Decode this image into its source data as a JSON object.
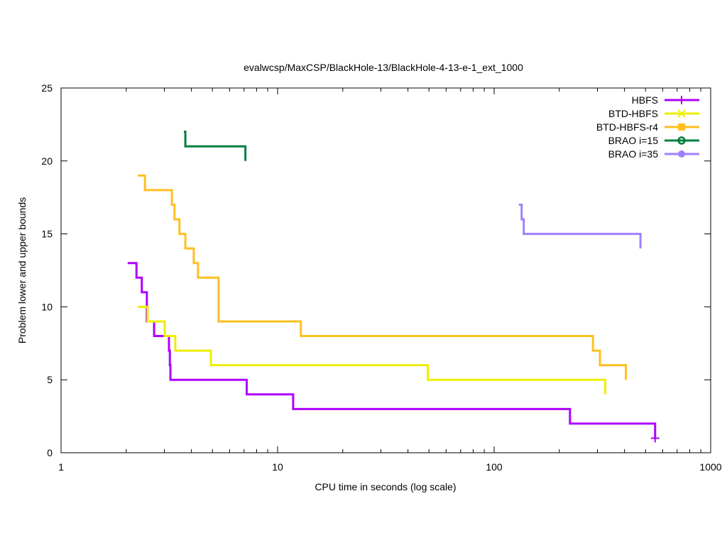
{
  "chart_data": {
    "type": "line",
    "title": "evalwcsp/MaxCSP/BlackHole-13/BlackHole-4-13-e-1_ext_1000",
    "xlabel": "CPU time in seconds (log scale)",
    "ylabel": "Problem lower and upper bounds",
    "xscale": "log",
    "xlim": [
      1,
      1000
    ],
    "ylim": [
      0,
      25
    ],
    "xticks": [
      1,
      10,
      100,
      1000
    ],
    "xtick_labels": [
      "1",
      "10",
      "100",
      "1000"
    ],
    "yticks": [
      0,
      5,
      10,
      15,
      20,
      25
    ],
    "ytick_labels": [
      "0",
      "5",
      "10",
      "15",
      "20",
      "25"
    ],
    "legend_position": "top-right",
    "series": [
      {
        "name": "HBFS",
        "color": "#b000ff",
        "marker": "plus",
        "steps": [
          [
            2.03,
            13
          ],
          [
            2.23,
            12
          ],
          [
            2.36,
            11
          ],
          [
            2.49,
            9
          ],
          [
            2.69,
            8
          ],
          [
            3.15,
            7
          ],
          [
            3.18,
            6
          ],
          [
            3.2,
            5
          ],
          [
            7.2,
            4
          ],
          [
            11.8,
            3
          ],
          [
            224,
            2
          ],
          [
            554,
            1
          ]
        ],
        "end_marker": [
          554,
          1
        ]
      },
      {
        "name": "BTD-HBFS",
        "color": "#eeee00",
        "marker": "star",
        "steps": [
          [
            2.26,
            10
          ],
          [
            2.51,
            9
          ],
          [
            3.01,
            8
          ],
          [
            3.37,
            7
          ],
          [
            4.92,
            6
          ],
          [
            49.4,
            5
          ],
          [
            326,
            4
          ]
        ]
      },
      {
        "name": "BTD-HBFS-r4",
        "color": "#ffbf20",
        "marker": "square",
        "steps": [
          [
            2.26,
            19
          ],
          [
            2.44,
            18
          ],
          [
            3.25,
            17
          ],
          [
            3.34,
            16
          ],
          [
            3.52,
            15
          ],
          [
            3.75,
            14
          ],
          [
            4.1,
            13
          ],
          [
            4.29,
            12
          ],
          [
            5.34,
            9
          ],
          [
            12.8,
            8
          ],
          [
            286,
            7
          ],
          [
            308,
            6
          ],
          [
            406,
            5
          ]
        ]
      },
      {
        "name": "BRAO i=15",
        "color": "#007f3f",
        "marker": "circle-open",
        "steps": [
          [
            3.69,
            22
          ],
          [
            3.75,
            21
          ],
          [
            7.1,
            20
          ]
        ]
      },
      {
        "name": "BRAO i=35",
        "color": "#9f7fff",
        "marker": "circle",
        "steps": [
          [
            130,
            17
          ],
          [
            134,
            16
          ],
          [
            137,
            15
          ],
          [
            474,
            14
          ]
        ]
      }
    ]
  }
}
